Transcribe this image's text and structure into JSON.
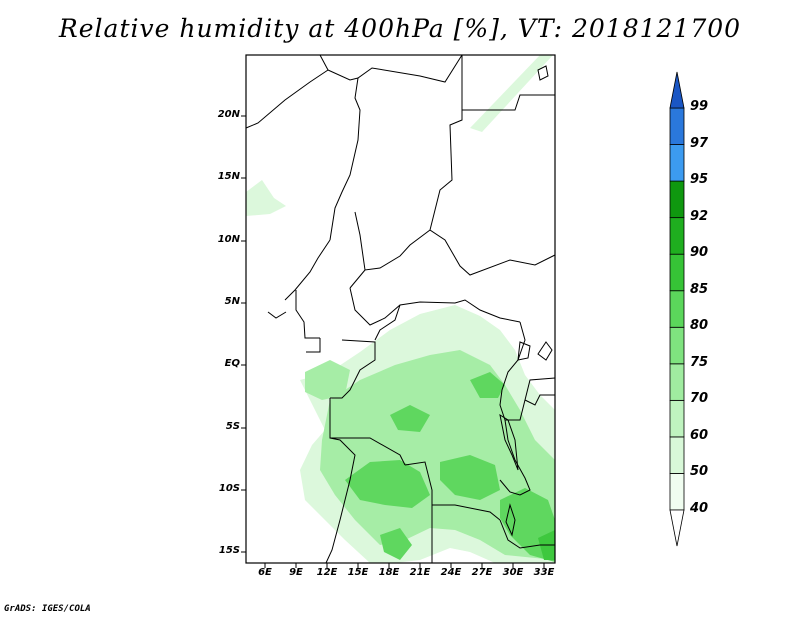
{
  "title": "Relative humidity at 400hPa [%], VT: 2018121700",
  "credit": "GrADS: IGES/COLA",
  "map": {
    "lat_ticks": [
      "20N",
      "15N",
      "10N",
      "5N",
      "EQ",
      "5S",
      "10S",
      "15S"
    ],
    "lon_ticks": [
      "6E",
      "9E",
      "12E",
      "15E",
      "18E",
      "21E",
      "24E",
      "27E",
      "30E",
      "33E"
    ]
  },
  "colorbar": {
    "levels": [
      "40",
      "50",
      "60",
      "70",
      "75",
      "80",
      "85",
      "90",
      "92",
      "95",
      "97",
      "99"
    ],
    "colors": [
      "#f0fdf0",
      "#d8f8d8",
      "#bff3bf",
      "#a0eca0",
      "#7fe37f",
      "#5bd65b",
      "#36c336",
      "#1fae1f",
      "#0f980f",
      "#3c9bf0",
      "#2a78dc",
      "#1a56c4"
    ],
    "arrow_top_color": "#1a56c4",
    "arrow_bottom_color": "#ffffff"
  },
  "palette": {
    "light": "#dcf8dc",
    "mid": "#a6eda6",
    "dark": "#5fd75f",
    "darker": "#3ec83e"
  }
}
